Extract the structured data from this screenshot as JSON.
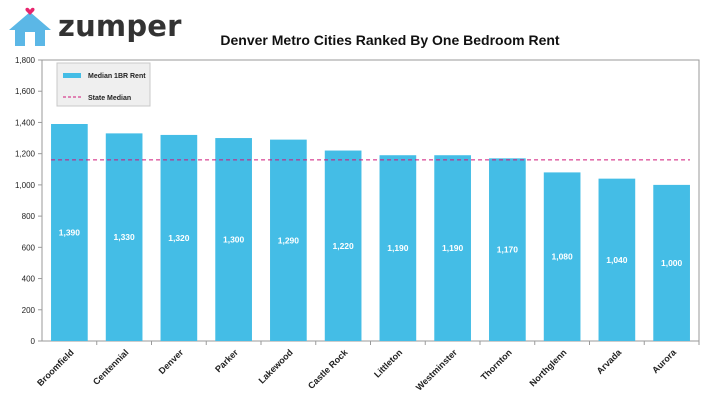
{
  "brand": {
    "name": "zumper",
    "accent": "#ffffff",
    "house_color": "#5bb7e6",
    "heart_color": "#e8246d"
  },
  "chart_data": {
    "type": "bar",
    "title": "Denver Metro Cities Ranked By One Bedroom Rent",
    "xlabel": "",
    "ylabel": "",
    "categories": [
      "Broomfield",
      "Centennial",
      "Denver",
      "Parker",
      "Lakewood",
      "Castle Rock",
      "Littleton",
      "Westminster",
      "Thornton",
      "Northglenn",
      "Arvada",
      "Aurora"
    ],
    "series": [
      {
        "name": "Median 1BR Rent",
        "type": "bar",
        "color": "#44bde6",
        "values": [
          1390,
          1330,
          1320,
          1300,
          1290,
          1220,
          1190,
          1190,
          1170,
          1080,
          1040,
          1000
        ],
        "data_labels": [
          "1,390",
          "1,330",
          "1,320",
          "1,300",
          "1,290",
          "1,220",
          "1,190",
          "1,190",
          "1,170",
          "1,080",
          "1,040",
          "1,000"
        ]
      },
      {
        "name": "State Median",
        "type": "line",
        "style": "dashed",
        "color": "#d0177a",
        "value": 1160
      }
    ],
    "ylim": [
      0,
      1800
    ],
    "yticks": [
      0,
      200,
      400,
      600,
      800,
      1000,
      1200,
      1400,
      1600,
      1800
    ],
    "ytick_labels": [
      "0",
      "200",
      "400",
      "600",
      "800",
      "1,000",
      "1,200",
      "1,400",
      "1,600",
      "1,800"
    ],
    "grid": false,
    "legend": "top-left"
  }
}
